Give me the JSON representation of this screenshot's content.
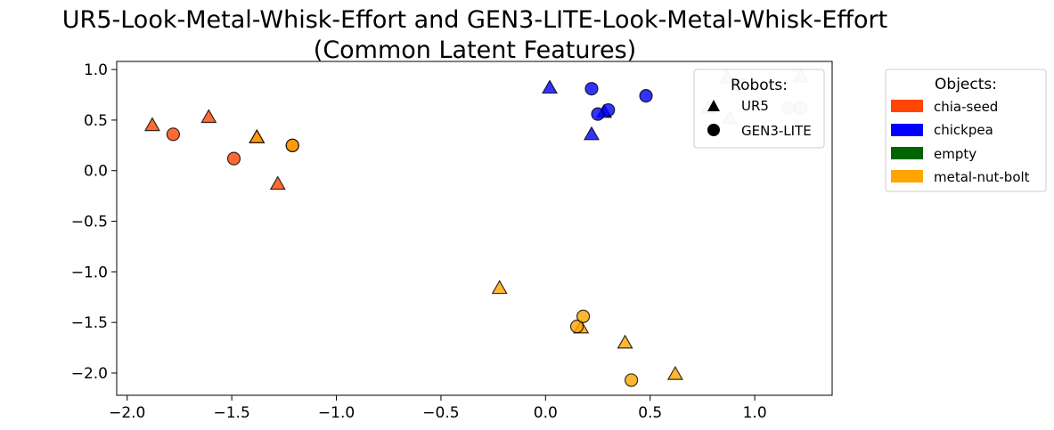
{
  "chart_data": {
    "type": "scatter",
    "title_line1": "UR5-Look-Metal-Whisk-Effort and GEN3-LITE-Look-Metal-Whisk-Effort",
    "title_line2": "(Common Latent Features)",
    "xlabel": "",
    "ylabel": "",
    "xlim": [
      -2.05,
      1.37
    ],
    "ylim": [
      -2.22,
      1.08
    ],
    "x_ticks": [
      -2.0,
      -1.5,
      -1.0,
      -0.5,
      0.0,
      0.5,
      1.0
    ],
    "x_tick_labels": [
      "−2.0",
      "−1.5",
      "−1.0",
      "−0.5",
      "0.0",
      "0.5",
      "1.0"
    ],
    "y_ticks": [
      1.0,
      0.5,
      0.0,
      -0.5,
      -1.0,
      -1.5,
      -2.0
    ],
    "y_tick_labels": [
      "1.0",
      "0.5",
      "0.0",
      "−0.5",
      "−1.0",
      "−1.5",
      "−2.0"
    ],
    "grid": false,
    "robots_legend": {
      "title": "Robots:",
      "placement": "top-right inside plot",
      "items": [
        {
          "label": "UR5",
          "marker": "triangle"
        },
        {
          "label": "GEN3-LITE",
          "marker": "circle"
        }
      ]
    },
    "objects_legend": {
      "title": "Objects:",
      "placement": "outside right",
      "items": [
        {
          "label": "chia-seed",
          "color": "#ff4500"
        },
        {
          "label": "chickpea",
          "color": "#0000ff"
        },
        {
          "label": "empty",
          "color": "#006400"
        },
        {
          "label": "metal-nut-bolt",
          "color": "#ffa500"
        }
      ]
    },
    "points": [
      {
        "object": "chia-seed",
        "robot": "UR5",
        "x": -1.88,
        "y": 0.45
      },
      {
        "object": "chia-seed",
        "robot": "UR5",
        "x": -1.61,
        "y": 0.53
      },
      {
        "object": "chia-seed",
        "robot": "UR5",
        "x": -1.38,
        "y": 0.33
      },
      {
        "object": "chia-seed",
        "robot": "UR5",
        "x": -1.28,
        "y": -0.13
      },
      {
        "object": "chia-seed",
        "robot": "GEN3-LITE",
        "x": -1.78,
        "y": 0.36
      },
      {
        "object": "chia-seed",
        "robot": "GEN3-LITE",
        "x": -1.49,
        "y": 0.12
      },
      {
        "object": "chia-seed",
        "robot": "GEN3-LITE",
        "x": -1.21,
        "y": 0.25
      },
      {
        "object": "chickpea",
        "robot": "UR5",
        "x": 0.02,
        "y": 0.82
      },
      {
        "object": "chickpea",
        "robot": "UR5",
        "x": 0.22,
        "y": 0.36
      },
      {
        "object": "chickpea",
        "robot": "UR5",
        "x": 0.28,
        "y": 0.58
      },
      {
        "object": "chickpea",
        "robot": "GEN3-LITE",
        "x": 0.22,
        "y": 0.81
      },
      {
        "object": "chickpea",
        "robot": "GEN3-LITE",
        "x": 0.25,
        "y": 0.56
      },
      {
        "object": "chickpea",
        "robot": "GEN3-LITE",
        "x": 0.3,
        "y": 0.6
      },
      {
        "object": "chickpea",
        "robot": "GEN3-LITE",
        "x": 0.48,
        "y": 0.74
      },
      {
        "object": "empty",
        "robot": "UR5",
        "x": 0.87,
        "y": 0.92
      },
      {
        "object": "empty",
        "robot": "UR5",
        "x": 0.88,
        "y": 0.52
      },
      {
        "object": "empty",
        "robot": "UR5",
        "x": 1.22,
        "y": 0.93
      },
      {
        "object": "empty",
        "robot": "UR5",
        "x": 0.78,
        "y": 0.62
      },
      {
        "object": "empty",
        "robot": "GEN3-LITE",
        "x": 0.93,
        "y": 0.85
      },
      {
        "object": "empty",
        "robot": "GEN3-LITE",
        "x": 1.16,
        "y": 0.62
      },
      {
        "object": "empty",
        "robot": "GEN3-LITE",
        "x": 1.22,
        "y": 0.62
      },
      {
        "object": "metal-nut-bolt",
        "robot": "UR5",
        "x": -1.38,
        "y": 0.33
      },
      {
        "object": "metal-nut-bolt",
        "robot": "UR5",
        "x": -0.22,
        "y": -1.16
      },
      {
        "object": "metal-nut-bolt",
        "robot": "UR5",
        "x": 0.17,
        "y": -1.55
      },
      {
        "object": "metal-nut-bolt",
        "robot": "UR5",
        "x": 0.38,
        "y": -1.7
      },
      {
        "object": "metal-nut-bolt",
        "robot": "UR5",
        "x": 0.62,
        "y": -2.01
      },
      {
        "object": "metal-nut-bolt",
        "robot": "GEN3-LITE",
        "x": -1.21,
        "y": 0.25
      },
      {
        "object": "metal-nut-bolt",
        "robot": "GEN3-LITE",
        "x": 0.15,
        "y": -1.54
      },
      {
        "object": "metal-nut-bolt",
        "robot": "GEN3-LITE",
        "x": 0.18,
        "y": -1.44
      },
      {
        "object": "metal-nut-bolt",
        "robot": "GEN3-LITE",
        "x": 0.41,
        "y": -2.07
      }
    ],
    "colors": {
      "chia-seed": "#ff4500",
      "chickpea": "#0000ff",
      "empty": "#006400",
      "metal-nut-bolt": "#ffa500"
    },
    "point_alpha": {
      "chia-seed": 0.8,
      "chickpea": 0.8,
      "empty": 0.15,
      "metal-nut-bolt": 0.8
    }
  }
}
